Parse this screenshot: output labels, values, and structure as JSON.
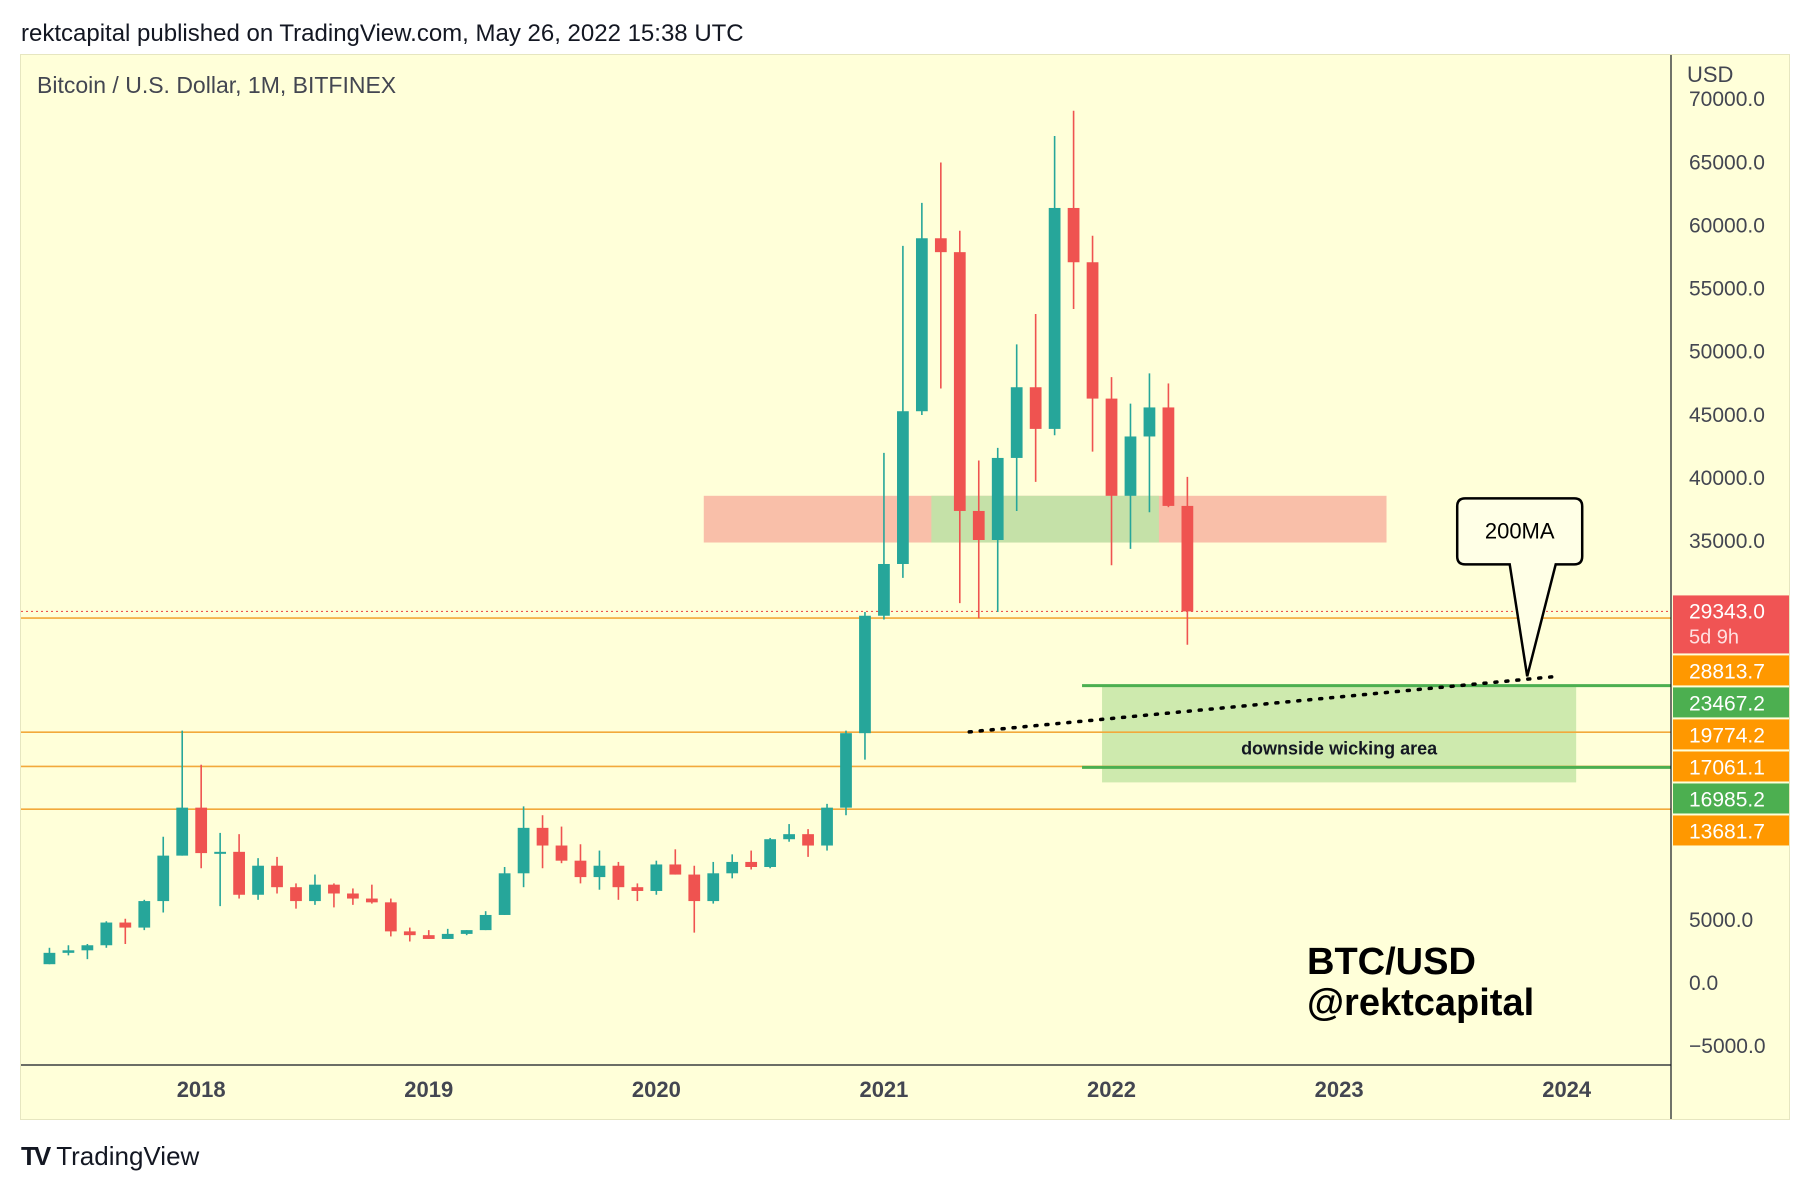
{
  "header": {
    "publish_line": "rektcapital published on TradingView.com, May 26, 2022 15:38 UTC"
  },
  "footer": {
    "brand": "TradingView",
    "logo_icon": "tradingview-logo-icon"
  },
  "colors": {
    "background": "#ffffd9",
    "bull": "#26a69a",
    "bear": "#ef5350",
    "level_line": "#f2a93b",
    "support_line": "#4caf50",
    "resistance_box": "#f8b4a0",
    "flip_box": "#c2e3a8",
    "wick_zone": "#a5d98a",
    "price_badge": "#f05454",
    "orange_badge": "#ff9800",
    "green_badge": "#4caf50"
  },
  "chart_data": {
    "type": "candlestick",
    "symbol_title": "Bitcoin / U.S. Dollar, 1M, BITFINEX",
    "currency_label": "USD",
    "ylim": [
      -5000,
      75000
    ],
    "xlim": [
      "2017-04",
      "2024-07"
    ],
    "y_ticks": [
      "70000.0",
      "65000.0",
      "60000.0",
      "55000.0",
      "50000.0",
      "45000.0",
      "40000.0",
      "35000.0",
      "5000.0",
      "0.0",
      "−5000.0"
    ],
    "y_tick_values": [
      70000,
      65000,
      60000,
      55000,
      50000,
      45000,
      40000,
      35000,
      5000,
      0,
      -5000
    ],
    "x_ticks": [
      "2018",
      "2019",
      "2020",
      "2021",
      "2022",
      "2023",
      "2024"
    ],
    "x_tick_dates": [
      "2018-01",
      "2019-01",
      "2020-01",
      "2021-01",
      "2022-01",
      "2023-01",
      "2024-01"
    ],
    "candles": [
      {
        "date": "2017-05",
        "open": 1400,
        "high": 2700,
        "low": 1400,
        "close": 2300
      },
      {
        "date": "2017-06",
        "open": 2300,
        "high": 2900,
        "low": 2100,
        "close": 2500
      },
      {
        "date": "2017-07",
        "open": 2500,
        "high": 3000,
        "low": 1800,
        "close": 2900
      },
      {
        "date": "2017-08",
        "open": 2900,
        "high": 4800,
        "low": 2700,
        "close": 4700
      },
      {
        "date": "2017-09",
        "open": 4700,
        "high": 5000,
        "low": 3000,
        "close": 4300
      },
      {
        "date": "2017-10",
        "open": 4300,
        "high": 6500,
        "low": 4100,
        "close": 6400
      },
      {
        "date": "2017-11",
        "open": 6400,
        "high": 11500,
        "low": 5500,
        "close": 10000
      },
      {
        "date": "2017-12",
        "open": 10000,
        "high": 19900,
        "low": 10000,
        "close": 13800
      },
      {
        "date": "2018-01",
        "open": 13800,
        "high": 17200,
        "low": 9000,
        "close": 10200
      },
      {
        "date": "2018-02",
        "open": 10200,
        "high": 11800,
        "low": 6000,
        "close": 10300
      },
      {
        "date": "2018-03",
        "open": 10300,
        "high": 11700,
        "low": 6600,
        "close": 6900
      },
      {
        "date": "2018-04",
        "open": 6900,
        "high": 9800,
        "low": 6500,
        "close": 9200
      },
      {
        "date": "2018-05",
        "open": 9200,
        "high": 9900,
        "low": 7000,
        "close": 7500
      },
      {
        "date": "2018-06",
        "open": 7500,
        "high": 7800,
        "low": 5800,
        "close": 6400
      },
      {
        "date": "2018-07",
        "open": 6400,
        "high": 8500,
        "low": 6100,
        "close": 7700
      },
      {
        "date": "2018-08",
        "open": 7700,
        "high": 7800,
        "low": 5900,
        "close": 7000
      },
      {
        "date": "2018-09",
        "open": 7000,
        "high": 7400,
        "low": 6100,
        "close": 6600
      },
      {
        "date": "2018-10",
        "open": 6600,
        "high": 7700,
        "low": 6200,
        "close": 6300
      },
      {
        "date": "2018-11",
        "open": 6300,
        "high": 6600,
        "low": 3600,
        "close": 4000
      },
      {
        "date": "2018-12",
        "open": 4000,
        "high": 4300,
        "low": 3200,
        "close": 3700
      },
      {
        "date": "2019-01",
        "open": 3700,
        "high": 4100,
        "low": 3400,
        "close": 3400
      },
      {
        "date": "2019-02",
        "open": 3400,
        "high": 4200,
        "low": 3400,
        "close": 3800
      },
      {
        "date": "2019-03",
        "open": 3800,
        "high": 4100,
        "low": 3700,
        "close": 4100
      },
      {
        "date": "2019-04",
        "open": 4100,
        "high": 5600,
        "low": 4100,
        "close": 5300
      },
      {
        "date": "2019-05",
        "open": 5300,
        "high": 9100,
        "low": 5300,
        "close": 8600
      },
      {
        "date": "2019-06",
        "open": 8600,
        "high": 13900,
        "low": 7500,
        "close": 12200
      },
      {
        "date": "2019-07",
        "open": 12200,
        "high": 13200,
        "low": 9000,
        "close": 10800
      },
      {
        "date": "2019-08",
        "open": 10800,
        "high": 12300,
        "low": 9400,
        "close": 9600
      },
      {
        "date": "2019-09",
        "open": 9600,
        "high": 10900,
        "low": 7800,
        "close": 8300
      },
      {
        "date": "2019-10",
        "open": 8300,
        "high": 10400,
        "low": 7300,
        "close": 9200
      },
      {
        "date": "2019-11",
        "open": 9200,
        "high": 9500,
        "low": 6500,
        "close": 7500
      },
      {
        "date": "2019-12",
        "open": 7500,
        "high": 7800,
        "low": 6400,
        "close": 7200
      },
      {
        "date": "2020-01",
        "open": 7200,
        "high": 9600,
        "low": 6900,
        "close": 9300
      },
      {
        "date": "2020-02",
        "open": 9300,
        "high": 10500,
        "low": 8500,
        "close": 8500
      },
      {
        "date": "2020-03",
        "open": 8500,
        "high": 9200,
        "low": 3900,
        "close": 6400
      },
      {
        "date": "2020-04",
        "open": 6400,
        "high": 9500,
        "low": 6200,
        "close": 8600
      },
      {
        "date": "2020-05",
        "open": 8600,
        "high": 10100,
        "low": 8200,
        "close": 9500
      },
      {
        "date": "2020-06",
        "open": 9500,
        "high": 10400,
        "low": 8900,
        "close": 9100
      },
      {
        "date": "2020-07",
        "open": 9100,
        "high": 11400,
        "low": 9000,
        "close": 11300
      },
      {
        "date": "2020-08",
        "open": 11300,
        "high": 12500,
        "low": 11100,
        "close": 11700
      },
      {
        "date": "2020-09",
        "open": 11700,
        "high": 12100,
        "low": 9900,
        "close": 10800
      },
      {
        "date": "2020-10",
        "open": 10800,
        "high": 14100,
        "low": 10400,
        "close": 13800
      },
      {
        "date": "2020-11",
        "open": 13800,
        "high": 19900,
        "low": 13200,
        "close": 19700
      },
      {
        "date": "2020-12",
        "open": 19700,
        "high": 29300,
        "low": 17600,
        "close": 29000
      },
      {
        "date": "2021-01",
        "open": 29000,
        "high": 41900,
        "low": 28700,
        "close": 33100
      },
      {
        "date": "2021-02",
        "open": 33100,
        "high": 58300,
        "low": 32000,
        "close": 45200
      },
      {
        "date": "2021-03",
        "open": 45200,
        "high": 61700,
        "low": 44900,
        "close": 58900
      },
      {
        "date": "2021-04",
        "open": 58900,
        "high": 64900,
        "low": 47000,
        "close": 57800
      },
      {
        "date": "2021-05",
        "open": 57800,
        "high": 59500,
        "low": 30000,
        "close": 37300
      },
      {
        "date": "2021-06",
        "open": 37300,
        "high": 41300,
        "low": 28800,
        "close": 35000
      },
      {
        "date": "2021-07",
        "open": 35000,
        "high": 42300,
        "low": 29300,
        "close": 41500
      },
      {
        "date": "2021-08",
        "open": 41500,
        "high": 50500,
        "low": 37300,
        "close": 47100
      },
      {
        "date": "2021-09",
        "open": 47100,
        "high": 52900,
        "low": 39600,
        "close": 43800
      },
      {
        "date": "2021-10",
        "open": 43800,
        "high": 67000,
        "low": 43300,
        "close": 61300
      },
      {
        "date": "2021-11",
        "open": 61300,
        "high": 69000,
        "low": 53300,
        "close": 57000
      },
      {
        "date": "2021-12",
        "open": 57000,
        "high": 59100,
        "low": 42000,
        "close": 46200
      },
      {
        "date": "2022-01",
        "open": 46200,
        "high": 47900,
        "low": 33000,
        "close": 38500
      },
      {
        "date": "2022-02",
        "open": 38500,
        "high": 45800,
        "low": 34300,
        "close": 43200
      },
      {
        "date": "2022-03",
        "open": 43200,
        "high": 48200,
        "low": 37200,
        "close": 45500
      },
      {
        "date": "2022-04",
        "open": 45500,
        "high": 47400,
        "low": 37600,
        "close": 37700
      },
      {
        "date": "2022-05",
        "open": 37700,
        "high": 40000,
        "low": 26700,
        "close": 29343
      }
    ],
    "resistance_zone": {
      "low": 34800,
      "high": 38500,
      "from": "2020-04",
      "to": "2023-04"
    },
    "flip_zone_1": {
      "low": 34800,
      "high": 38500,
      "from": "2021-04",
      "to": "2022-04"
    },
    "horizontal_levels": [
      28813.7,
      19774.2,
      17061.1,
      13681.7
    ],
    "support_lines": [
      23467.2,
      16985.2
    ],
    "wicking_zone": {
      "low": 15800,
      "high": 23467.2,
      "from": "2022-01",
      "to": "2024-02",
      "label": "downside wicking area"
    },
    "ma_line": {
      "label": "200MA",
      "from": {
        "date": "2021-06",
        "value": 19800
      },
      "to": {
        "date": "2024-01",
        "value": 24200
      }
    },
    "current_price": {
      "value": 29343.0,
      "label": "29343.0",
      "countdown": "5d 9h"
    },
    "price_badges": [
      {
        "label": "28813.7",
        "value": 28813.7,
        "kind": "orange"
      },
      {
        "label": "23467.2",
        "value": 23467.2,
        "kind": "green"
      },
      {
        "label": "19774.2",
        "value": 19774.2,
        "kind": "orange"
      },
      {
        "label": "17061.1",
        "value": 17061.1,
        "kind": "orange"
      },
      {
        "label": "16985.2",
        "value": 16985.2,
        "kind": "green"
      },
      {
        "label": "13681.7",
        "value": 13681.7,
        "kind": "orange"
      }
    ],
    "watermark": [
      "BTC/USD",
      "@rektcapital"
    ]
  }
}
